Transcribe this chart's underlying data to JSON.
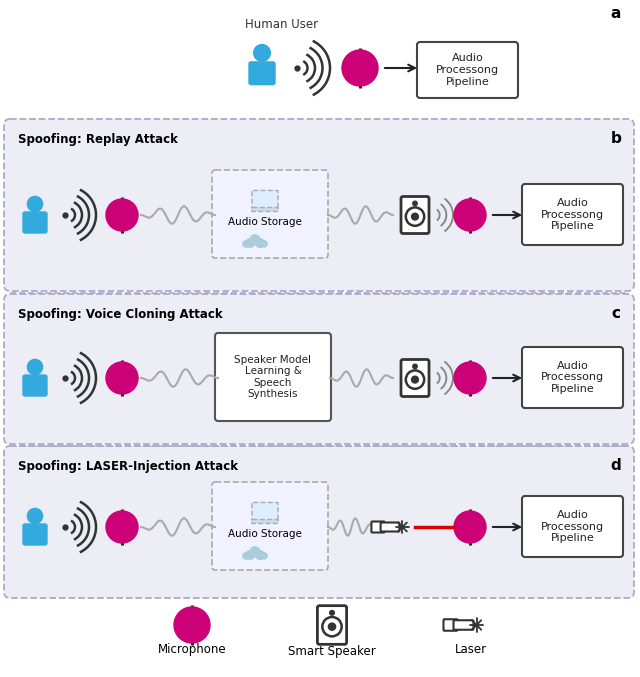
{
  "mic_color": "#cc0077",
  "person_color": "#33aadd",
  "wave_dark": "#333333",
  "wave_gray": "#999999",
  "laser_color": "#dd0000",
  "panel_bg": "#ecedf5",
  "panel_border": "#aaaacc",
  "box_bg": "#ffffff",
  "box_border": "#444444",
  "dashed_border": "#aaaaaa",
  "text_color": "#222222",
  "title_a": "a",
  "title_b": "b",
  "title_c": "c",
  "title_d": "d",
  "label_replay": "Spoofing: Replay Attack",
  "label_cloning": "Spoofing: Voice Cloning Attack",
  "label_laser": "Spoofing: LASER-Injection Attack",
  "label_human": "Human User",
  "label_audio_pipeline": "Audio\nProcessong\nPipeline",
  "label_audio_storage": "Audio Storage",
  "label_speaker_model": "Speaker Model\nLearning &\nSpeech\nSynthesis",
  "legend_mic": "Microphone",
  "legend_speaker": "Smart Speaker",
  "legend_laser": "Laser"
}
